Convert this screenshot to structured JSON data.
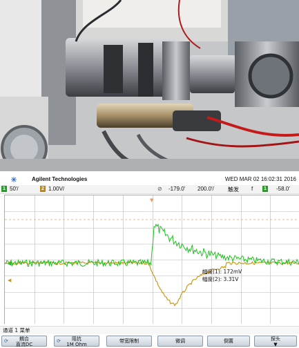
{
  "scope": {
    "brand": "Agilent Technologies",
    "datetime": "WED MAR 02 16:02:31 2016",
    "status": {
      "ch1_num": "1",
      "ch1_scale": "50′/",
      "ch2_num": "2",
      "ch2_scale": "1.00V/",
      "trig_icon": "⊘",
      "time_offset": "-179.0′",
      "time_scale": "200.0′/",
      "mode": "触发",
      "trig_edge": "f",
      "trig_ch": "1",
      "trig_level": "-58.0′"
    },
    "measurements": {
      "m1": "幅度(1): 172mV",
      "m2": "幅度(2): 3.31V"
    },
    "menu_title": "通道 1 菜单",
    "softkeys": [
      {
        "l1": "耦合",
        "l2": "直流DC"
      },
      {
        "l1": "阻抗",
        "l2": "1M Ohm"
      },
      {
        "l1": "带宽限制",
        "l2": ""
      },
      {
        "l1": "微调",
        "l2": ""
      },
      {
        "l1": "倒置",
        "l2": ""
      },
      {
        "l1": "探头",
        "l2": "▼"
      }
    ],
    "colors": {
      "ch1": "#1fbf1f",
      "ch2": "#c79b1a",
      "grid": "#b8b8b8",
      "trigger_line": "#f39a5a"
    }
  }
}
